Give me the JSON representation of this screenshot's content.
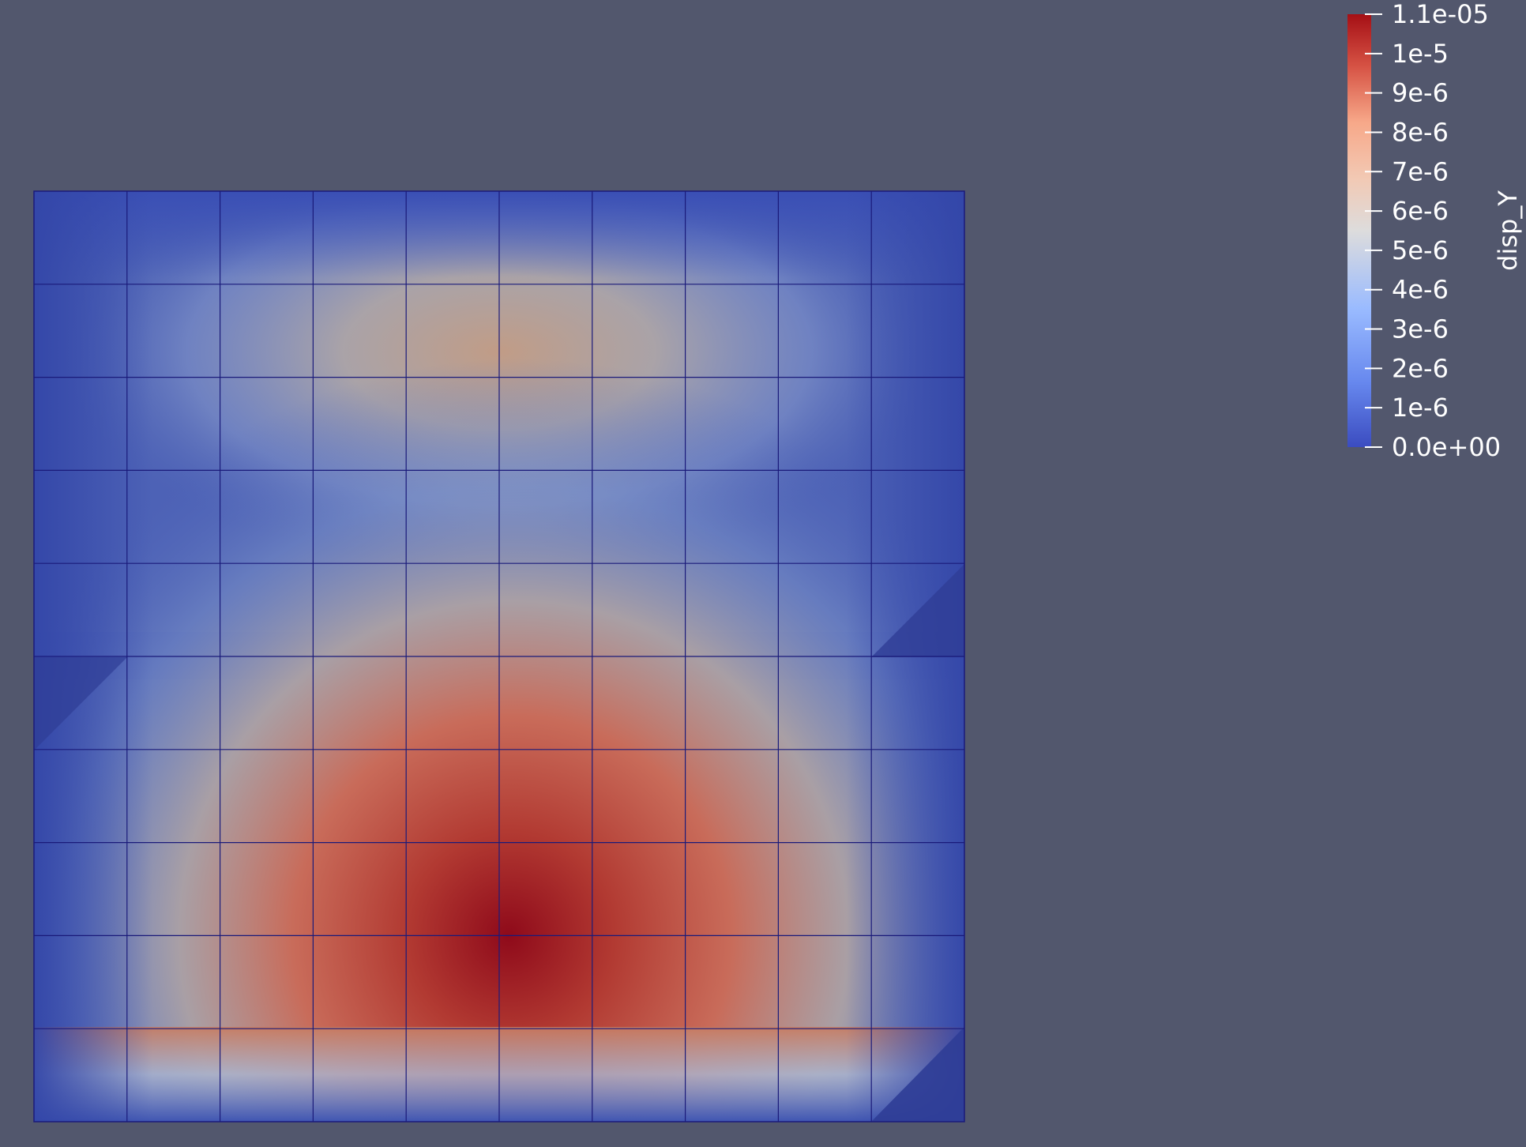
{
  "colorbar": {
    "title": "disp_Y",
    "tick_labels": [
      "1.1e-05",
      "1e-5",
      "9e-6",
      "8e-6",
      "7e-6",
      "6e-6",
      "5e-6",
      "4e-6",
      "3e-6",
      "2e-6",
      "1e-6",
      "0.0e+00"
    ],
    "tick_values": [
      1.1e-05,
      1e-05,
      9e-06,
      8e-06,
      7e-06,
      6e-06,
      5e-06,
      4e-06,
      3e-06,
      2e-06,
      1e-06,
      0
    ],
    "range": [
      0,
      1.1e-05
    ],
    "colormap": [
      "#3b4cc0",
      "#6788ee",
      "#9abbff",
      "#c9d7f0",
      "#edd1c2",
      "#f7a889",
      "#e26952",
      "#b40426",
      "#a50f15"
    ]
  },
  "mesh": {
    "divisions_x": 10,
    "divisions_y": 10,
    "edge_color": "#1a1a7a"
  },
  "colors": {
    "background": "#52576d",
    "low": "#2f3d96",
    "high": "#8f0a1a"
  }
}
